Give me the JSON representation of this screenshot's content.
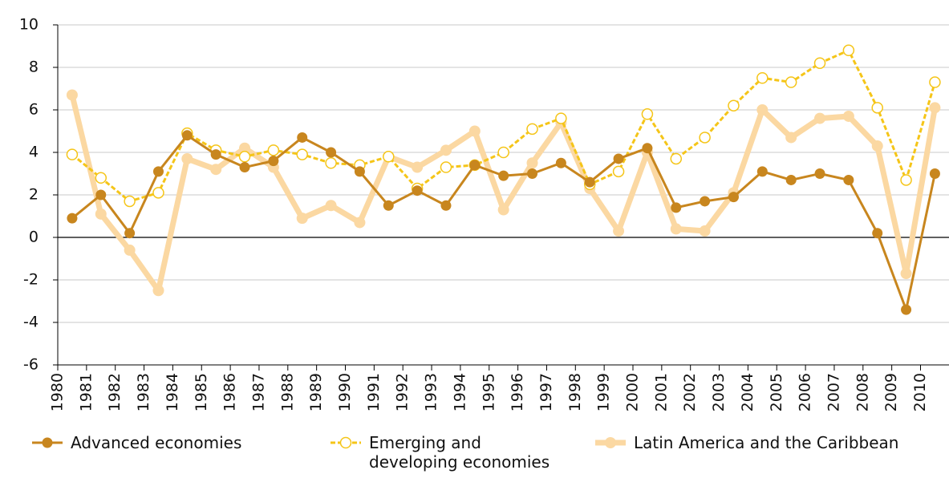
{
  "chart_data": {
    "type": "line",
    "categories": [
      "1980",
      "1981",
      "1982",
      "1983",
      "1984",
      "1985",
      "1986",
      "1987",
      "1988",
      "1989",
      "1990",
      "1991",
      "1992",
      "1993",
      "1994",
      "1995",
      "1996",
      "1997",
      "1998",
      "1999",
      "2000",
      "2001",
      "2002",
      "2003",
      "2004",
      "2005",
      "2006",
      "2007",
      "2008",
      "2009",
      "2010"
    ],
    "series": [
      {
        "name": "Advanced economies",
        "color": "#c8861e",
        "marker": "filled",
        "dashed": false,
        "values": [
          0.9,
          2.0,
          0.2,
          3.1,
          4.8,
          3.9,
          3.3,
          3.6,
          4.7,
          4.0,
          3.1,
          1.5,
          2.2,
          1.5,
          3.4,
          2.9,
          3.0,
          3.5,
          2.6,
          3.7,
          4.2,
          1.4,
          1.7,
          1.9,
          3.1,
          2.7,
          3.0,
          2.7,
          0.2,
          -3.4,
          3.0
        ]
      },
      {
        "name": "Emerging and developing economies",
        "color": "#f5c518",
        "marker": "open",
        "dashed": true,
        "values": [
          3.9,
          2.8,
          1.7,
          2.1,
          4.9,
          4.1,
          3.8,
          4.1,
          3.9,
          3.5,
          3.4,
          3.8,
          2.3,
          3.3,
          3.4,
          4.0,
          5.1,
          5.6,
          2.5,
          3.1,
          5.8,
          3.7,
          4.7,
          6.2,
          7.5,
          7.3,
          8.2,
          8.8,
          6.1,
          2.7,
          7.3
        ]
      },
      {
        "name": "Latin America and the Caribbean",
        "color": "#fbd8a2",
        "marker": "thick",
        "dashed": false,
        "values": [
          6.7,
          1.1,
          -0.6,
          -2.5,
          3.7,
          3.2,
          4.2,
          3.3,
          0.9,
          1.5,
          0.7,
          3.8,
          3.3,
          4.1,
          5.0,
          1.3,
          3.5,
          5.4,
          2.3,
          0.3,
          4.0,
          0.4,
          0.3,
          2.1,
          6.0,
          4.7,
          5.6,
          5.7,
          4.3,
          -1.7,
          6.1
        ]
      }
    ],
    "ylim": [
      -6,
      10
    ],
    "yticks": [
      -6,
      -4,
      -2,
      0,
      2,
      4,
      6,
      8,
      10
    ],
    "grid": true
  }
}
